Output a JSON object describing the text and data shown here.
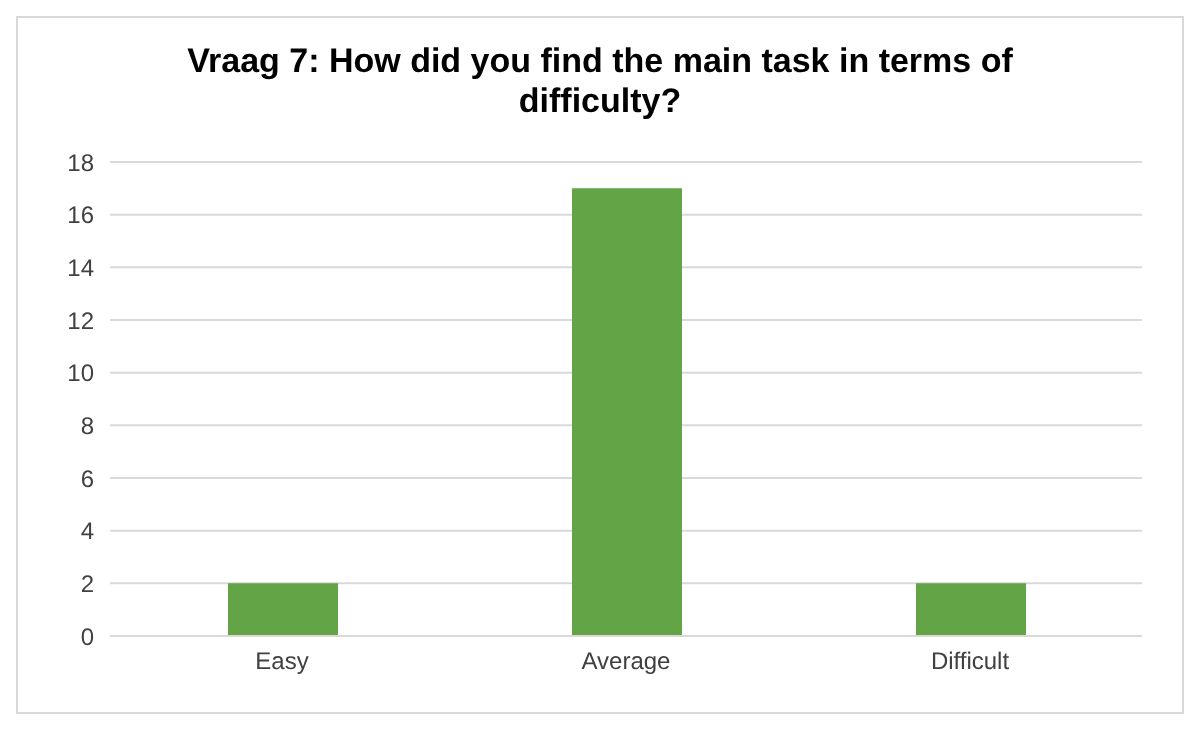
{
  "chart_data": {
    "type": "bar",
    "title": "Vraag 7: How did you find the main task in terms of difficulty?",
    "categories": [
      "Easy",
      "Average",
      "Difficult"
    ],
    "values": [
      2,
      17,
      2
    ],
    "color": "#63a546",
    "ylim": [
      0,
      18
    ],
    "yticks": [
      0,
      2,
      4,
      6,
      8,
      10,
      12,
      14,
      16,
      18
    ],
    "grid": "y"
  }
}
